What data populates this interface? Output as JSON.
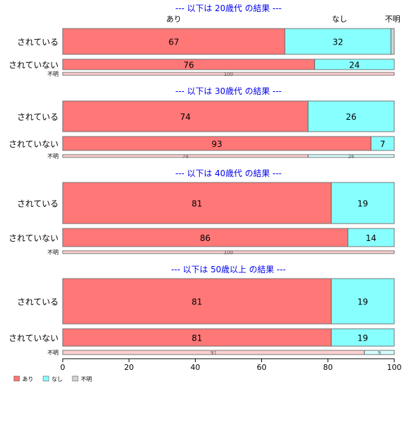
{
  "chart_data": {
    "type": "bar",
    "orientation": "horizontal",
    "stacked": true,
    "xlim": [
      0,
      100
    ],
    "x_ticks": [
      "0",
      "20",
      "40",
      "60",
      "80",
      "100"
    ],
    "grid": false,
    "legend": {
      "placement": "bottom-left",
      "entries": [
        "あり",
        "なし",
        "不明"
      ]
    },
    "colors": {
      "あり": "#ff7777",
      "なし": "#88ffff",
      "不明": "#d3d3d3",
      "title": "#0000ee"
    },
    "category_header": [
      "あり",
      "なし",
      "不明"
    ],
    "panels": [
      {
        "title": "--- 以下は 20歳代 の結果 ---",
        "rows": [
          {
            "label": "されている",
            "values": [
              67,
              32,
              1
            ],
            "labels": [
              "67",
              "32",
              ""
            ]
          },
          {
            "label": "されていない",
            "values": [
              76,
              24,
              0
            ],
            "labels": [
              "76",
              "24",
              ""
            ]
          },
          {
            "label": "不明",
            "values": [
              100,
              0,
              0
            ],
            "labels": [
              "100",
              "",
              ""
            ]
          }
        ]
      },
      {
        "title": "--- 以下は 30歳代 の結果 ---",
        "rows": [
          {
            "label": "されている",
            "values": [
              74,
              26,
              0
            ],
            "labels": [
              "74",
              "26",
              ""
            ]
          },
          {
            "label": "されていない",
            "values": [
              93,
              7,
              0
            ],
            "labels": [
              "93",
              "7",
              ""
            ]
          },
          {
            "label": "不明",
            "values": [
              74,
              26,
              0
            ],
            "labels": [
              "74",
              "26",
              ""
            ]
          }
        ]
      },
      {
        "title": "--- 以下は 40歳代 の結果 ---",
        "rows": [
          {
            "label": "されている",
            "values": [
              81,
              19,
              0
            ],
            "labels": [
              "81",
              "19",
              ""
            ]
          },
          {
            "label": "されていない",
            "values": [
              86,
              14,
              0
            ],
            "labels": [
              "86",
              "14",
              ""
            ]
          },
          {
            "label": "不明",
            "values": [
              100,
              0,
              0
            ],
            "labels": [
              "100",
              "",
              ""
            ]
          }
        ]
      },
      {
        "title": "--- 以下は 50歳以上 の結果 ---",
        "rows": [
          {
            "label": "されている",
            "values": [
              81,
              19,
              0
            ],
            "labels": [
              "81",
              "19",
              ""
            ]
          },
          {
            "label": "されていない",
            "values": [
              81,
              19,
              0
            ],
            "labels": [
              "81",
              "19",
              ""
            ]
          },
          {
            "label": "不明",
            "values": [
              91,
              9,
              0
            ],
            "labels": [
              "91",
              "9",
              ""
            ]
          }
        ]
      }
    ]
  }
}
